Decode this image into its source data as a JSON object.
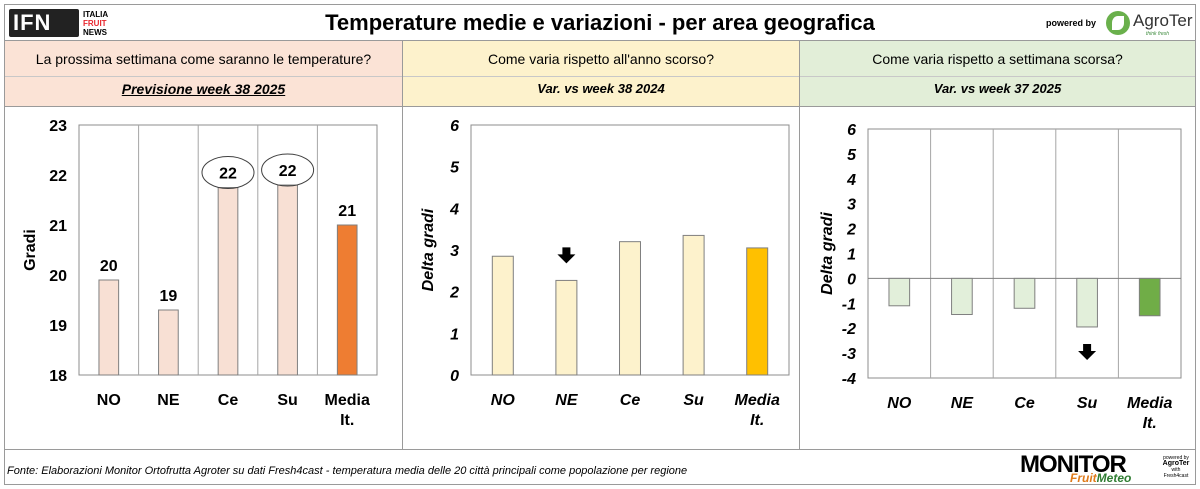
{
  "header": {
    "logo_main": "IFN",
    "logo_lines": [
      "ITALIA",
      "FRUIT",
      "NEWS"
    ],
    "title": "Temperature medie e variazioni - per area geografica",
    "powered_by": "powered by",
    "sponsor": "AgroTer",
    "sponsor_tag": "think fresh"
  },
  "sections": [
    {
      "question": "La prossima settimana come saranno le temperature?",
      "subtitle": "Previsione week 38 2025"
    },
    {
      "question": "Come varia rispetto all'anno scorso?",
      "subtitle": "Var. vs week 38 2024"
    },
    {
      "question": "Come varia rispetto a settimana scorsa?",
      "subtitle": "Var. vs week 37 2025"
    }
  ],
  "colors": {
    "panel1_bar": "#f8e0d4",
    "panel1_avg": "#ee7d32",
    "panel2_bar": "#fdf2cc",
    "panel2_avg": "#ffc000",
    "panel3_bar": "#e2efda",
    "panel3_avg": "#70ad47",
    "border": "#8c8c8c",
    "grid": "#a6a6a6"
  },
  "chart_data": [
    {
      "type": "bar",
      "categories": [
        "NO",
        "NE",
        "Ce",
        "Su",
        "Media It."
      ],
      "values": [
        19.9,
        19.3,
        21.75,
        21.8,
        21.0
      ],
      "data_labels": [
        "20",
        "19",
        "22",
        "22",
        "21"
      ],
      "circled": [
        2,
        3
      ],
      "ylabel": "Gradi",
      "ylim": [
        18,
        23
      ],
      "yticks": [
        18,
        19,
        20,
        21,
        22,
        23
      ],
      "vertical_grid": true
    },
    {
      "type": "bar",
      "categories": [
        "NO",
        "NE",
        "Ce",
        "Su",
        "Media It."
      ],
      "values": [
        2.85,
        2.27,
        3.2,
        3.35,
        3.05
      ],
      "ylabel": "Delta gradi",
      "ylim": [
        0,
        6
      ],
      "yticks": [
        0,
        1,
        2,
        3,
        4,
        5,
        6
      ],
      "arrow_down_index": 1,
      "vertical_grid": false
    },
    {
      "type": "bar",
      "categories": [
        "NO",
        "NE",
        "Ce",
        "Su",
        "Media It."
      ],
      "values": [
        -1.1,
        -1.45,
        -1.2,
        -1.95,
        -1.5
      ],
      "ylabel": "Delta gradi",
      "ylim": [
        -4,
        6
      ],
      "yticks": [
        -4,
        -3,
        -2,
        -1,
        0,
        1,
        2,
        3,
        4,
        5,
        6
      ],
      "arrow_down_index": 3,
      "vertical_grid": true
    }
  ],
  "footer": {
    "note": "Fonte: Elaborazioni Monitor Ortofrutta Agroter su dati Fresh4cast - temperatura media delle 20 città principali come popolazione per regione",
    "logo_monitor": "MONITOR",
    "logo_fruit": "Fruit",
    "logo_meteo": "Meteo",
    "logo_powered": "powered by",
    "logo_agroter": "AgroTer",
    "logo_with": "with",
    "logo_partner": "Fresh4cast"
  }
}
